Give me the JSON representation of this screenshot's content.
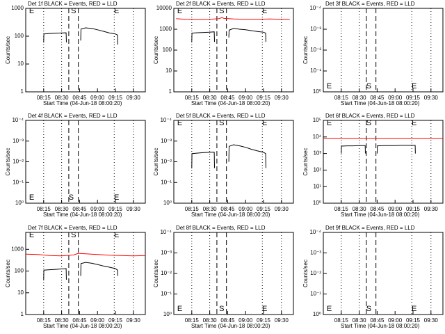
{
  "chart_data": [
    {
      "type": "line",
      "title": "Det 1f BLACK = Events, RED = LLD",
      "xlabel": "Start Time (04-Jun-18 08:00:20)",
      "ylabel": "Counts/sec",
      "ylog": true,
      "xlim": [
        0,
        100
      ],
      "xticks": [
        {
          "value": 15,
          "label": "08:15"
        },
        {
          "value": 30,
          "label": "08:30"
        },
        {
          "value": 45,
          "label": "08:45"
        },
        {
          "value": 60,
          "label": "09:00"
        },
        {
          "value": 75,
          "label": "09:15"
        },
        {
          "value": 90,
          "label": "09:30"
        }
      ],
      "ylim": [
        1,
        1000
      ],
      "yticks": [
        1,
        10,
        100,
        1000
      ],
      "dashed": [
        36,
        44
      ],
      "dotted": [
        15,
        30,
        74,
        90
      ],
      "events": [
        {
          "label": "E",
          "x": 5
        },
        {
          "label": "S",
          "x": 40
        },
        {
          "label": "E",
          "x": 76
        }
      ],
      "event_labels": "top",
      "series": [
        {
          "color": "#000000",
          "x": [
            15,
            15.2,
            20,
            25,
            30,
            33.8,
            34,
            40,
            46,
            46.2,
            50,
            55,
            60,
            65,
            70,
            75,
            76.8,
            77
          ],
          "values": [
            60,
            120,
            125,
            128,
            130,
            132,
            60,
            null,
            70,
            180,
            200,
            190,
            170,
            150,
            130,
            120,
            110,
            50
          ]
        }
      ]
    },
    {
      "type": "line",
      "title": "Det 2f BLACK = Events, RED = LLD",
      "xlabel": "Start Time (04-Jun-18 08:00:20)",
      "ylabel": "Counts/sec",
      "ylog": true,
      "xlim": [
        0,
        100
      ],
      "xticks": [
        {
          "value": 15,
          "label": "08:15"
        },
        {
          "value": 30,
          "label": "08:30"
        },
        {
          "value": 45,
          "label": "08:45"
        },
        {
          "value": 60,
          "label": "09:00"
        },
        {
          "value": 75,
          "label": "09:15"
        },
        {
          "value": 90,
          "label": "09:30"
        }
      ],
      "ylim": [
        1,
        10000
      ],
      "yticks": [
        1,
        10,
        100,
        1000,
        10000
      ],
      "dashed": [
        36,
        44
      ],
      "dotted": [
        15,
        30,
        74,
        90
      ],
      "events": [
        {
          "label": "E",
          "x": 5
        },
        {
          "label": "S",
          "x": 40
        },
        {
          "label": "E",
          "x": 76
        }
      ],
      "event_labels": "top",
      "series": [
        {
          "color": "#000000",
          "x": [
            15,
            15.2,
            20,
            25,
            30,
            33.8,
            34,
            40,
            46,
            46.2,
            50,
            55,
            60,
            65,
            70,
            75,
            76.8,
            77
          ],
          "values": [
            250,
            650,
            680,
            700,
            720,
            750,
            250,
            null,
            400,
            900,
            1100,
            1000,
            950,
            850,
            780,
            720,
            650,
            250
          ]
        },
        {
          "color": "#ff0000",
          "x": [
            2,
            10,
            20,
            30,
            38,
            40,
            42,
            50,
            60,
            70,
            80,
            90,
            97
          ],
          "values": [
            3200,
            3000,
            2900,
            3000,
            3200,
            3600,
            3300,
            3100,
            3000,
            3000,
            3100,
            3000,
            3000
          ]
        }
      ]
    },
    {
      "type": "line",
      "title": "Det 3f BLACK = Events, RED = LLD",
      "xlabel": "Start Time (04-Jun-18 08:00:20)",
      "ylabel": "Counts/sec",
      "ylog": true,
      "xlim": [
        0,
        100
      ],
      "xticks": [
        {
          "value": 15,
          "label": "08:15"
        },
        {
          "value": 30,
          "label": "08:30"
        },
        {
          "value": 45,
          "label": "08:45"
        },
        {
          "value": 60,
          "label": "09:00"
        },
        {
          "value": 75,
          "label": "09:15"
        },
        {
          "value": 90,
          "label": "09:30"
        }
      ],
      "ylim": [
        1,
        0.0001
      ],
      "yticks": [
        {
          "value": 1,
          "label": "10⁰"
        },
        {
          "value": 0.1,
          "label": "10⁻¹"
        },
        {
          "value": 0.01,
          "label": "10⁻²"
        },
        {
          "value": 0.001,
          "label": "10⁻³"
        },
        {
          "value": 0.0001,
          "label": "10⁻⁴"
        }
      ],
      "dashed": [
        36,
        44
      ],
      "dotted": [
        15,
        30,
        74,
        90
      ],
      "events": [
        {
          "label": "E",
          "x": 5
        },
        {
          "label": "S",
          "x": 38
        },
        {
          "label": "E",
          "x": 76
        }
      ],
      "event_labels": "bottom",
      "series": []
    },
    {
      "type": "line",
      "title": "Det 4f BLACK = Events, RED = LLD",
      "xlabel": "Start Time (04-Jun-18 08:00:20)",
      "ylabel": "Counts/sec",
      "ylog": true,
      "xlim": [
        0,
        100
      ],
      "xticks": [
        {
          "value": 15,
          "label": "08:15"
        },
        {
          "value": 30,
          "label": "08:30"
        },
        {
          "value": 45,
          "label": "08:45"
        },
        {
          "value": 60,
          "label": "09:00"
        },
        {
          "value": 75,
          "label": "09:15"
        },
        {
          "value": 90,
          "label": "09:30"
        }
      ],
      "ylim": [
        1,
        0.0001
      ],
      "yticks": [
        {
          "value": 1,
          "label": "10⁰"
        },
        {
          "value": 0.1,
          "label": "10⁻¹"
        },
        {
          "value": 0.01,
          "label": "10⁻²"
        },
        {
          "value": 0.001,
          "label": "10⁻³"
        },
        {
          "value": 0.0001,
          "label": "10⁻⁴"
        }
      ],
      "dashed": [
        36,
        44
      ],
      "dotted": [
        15,
        30,
        74,
        90
      ],
      "events": [
        {
          "label": "E",
          "x": 5
        },
        {
          "label": "S",
          "x": 38
        },
        {
          "label": "E",
          "x": 76
        }
      ],
      "event_labels": "bottom",
      "series": []
    },
    {
      "type": "line",
      "title": "Det 5f BLACK = Events, RED = LLD",
      "xlabel": "Start Time (04-Jun-18 08:00:20)",
      "ylabel": "Counts/sec",
      "ylog": true,
      "xlim": [
        0,
        100
      ],
      "xticks": [
        {
          "value": 15,
          "label": "08:15"
        },
        {
          "value": 30,
          "label": "08:30"
        },
        {
          "value": 45,
          "label": "08:45"
        },
        {
          "value": 60,
          "label": "09:00"
        },
        {
          "value": 75,
          "label": "09:15"
        },
        {
          "value": 90,
          "label": "09:30"
        }
      ],
      "ylim": [
        1,
        0.0001
      ],
      "yticks": [
        {
          "value": 1,
          "label": "10⁰"
        },
        {
          "value": 0.1,
          "label": "10⁻¹"
        },
        {
          "value": 0.01,
          "label": "10⁻²"
        },
        {
          "value": 0.001,
          "label": "10⁻³"
        },
        {
          "value": 0.0001,
          "label": "10⁻⁴"
        }
      ],
      "dashed": [
        36,
        44
      ],
      "dotted": [
        15,
        30,
        74,
        90
      ],
      "events": [
        {
          "label": "E",
          "x": 5
        },
        {
          "label": "S",
          "x": 40
        },
        {
          "label": "E",
          "x": 76
        }
      ],
      "event_labels": "top",
      "series": [
        {
          "color": "#000000",
          "x": [
            15,
            15.2,
            20,
            25,
            30,
            33.8,
            34,
            40,
            46,
            46.2,
            50,
            55,
            60,
            65,
            70,
            75,
            76.8,
            77
          ],
          "values": [
            0.02,
            0.004,
            0.0038,
            0.0036,
            0.0035,
            0.0034,
            0.02,
            null,
            0.01,
            0.0018,
            0.0015,
            0.0017,
            0.002,
            0.0025,
            0.003,
            0.0035,
            0.004,
            0.02
          ]
        }
      ]
    },
    {
      "type": "line",
      "title": "Det 6f BLACK = Events, RED = LLD",
      "xlabel": "Start Time (04-Jun-18 08:00:20)",
      "ylabel": "Counts/sec",
      "ylog": true,
      "xlim": [
        0,
        100
      ],
      "xticks": [
        {
          "value": 15,
          "label": "08:15"
        },
        {
          "value": 30,
          "label": "08:30"
        },
        {
          "value": 45,
          "label": "08:45"
        },
        {
          "value": 60,
          "label": "09:00"
        },
        {
          "value": 75,
          "label": "09:15"
        },
        {
          "value": 90,
          "label": "09:30"
        }
      ],
      "ylim": [
        1,
        100000
      ],
      "yticks": [
        {
          "value": 1,
          "label": "10⁰"
        },
        {
          "value": 10,
          "label": "10¹"
        },
        {
          "value": 100,
          "label": "10²"
        },
        {
          "value": 1000,
          "label": "10³"
        },
        {
          "value": 10000,
          "label": "10⁴"
        },
        {
          "value": 100000,
          "label": "10⁵"
        }
      ],
      "dashed": [
        36,
        44
      ],
      "dotted": [
        15,
        30,
        74,
        90
      ],
      "events": [
        {
          "label": "E",
          "x": 5
        },
        {
          "label": "S",
          "x": 38
        },
        {
          "label": "E",
          "x": 76
        }
      ],
      "event_labels": "top",
      "series": [
        {
          "color": "#000000",
          "x": [
            15,
            15.2,
            20,
            25,
            30,
            35,
            35.2,
            40,
            45,
            45.2,
            50,
            55,
            60,
            65,
            70,
            76.8,
            77
          ],
          "values": [
            1000,
            2800,
            2900,
            2900,
            3000,
            3000,
            1000,
            null,
            1000,
            2900,
            3000,
            3000,
            3000,
            3100,
            3100,
            3100,
            1000
          ]
        },
        {
          "color": "#ff0000",
          "x": [
            0,
            100
          ],
          "values": [
            8000,
            8000
          ]
        }
      ]
    },
    {
      "type": "line",
      "title": "Det 7f BLACK = Events, RED = LLD",
      "xlabel": "Start Time (04-Jun-18 08:00:20)",
      "ylabel": "Counts/sec",
      "ylog": true,
      "xlim": [
        0,
        100
      ],
      "xticks": [
        {
          "value": 15,
          "label": "08:15"
        },
        {
          "value": 30,
          "label": "08:30"
        },
        {
          "value": 45,
          "label": "08:45"
        },
        {
          "value": 60,
          "label": "09:00"
        },
        {
          "value": 75,
          "label": "09:15"
        },
        {
          "value": 90,
          "label": "09:30"
        }
      ],
      "ylim": [
        1,
        6000
      ],
      "yticks": [
        1,
        10,
        100,
        1000
      ],
      "dashed": [
        36,
        44
      ],
      "dotted": [
        15,
        30,
        74,
        90
      ],
      "events": [
        {
          "label": "E",
          "x": 5
        },
        {
          "label": "S",
          "x": 40
        },
        {
          "label": "E",
          "x": 76
        }
      ],
      "event_labels": "top",
      "series": [
        {
          "color": "#000000",
          "x": [
            15,
            15.2,
            20,
            25,
            30,
            33.8,
            34,
            40,
            46,
            46.2,
            50,
            55,
            60,
            65,
            70,
            75,
            76.8,
            77
          ],
          "values": [
            40,
            110,
            115,
            120,
            125,
            130,
            40,
            null,
            60,
            220,
            250,
            230,
            200,
            170,
            150,
            130,
            110,
            60
          ]
        },
        {
          "color": "#ff0000",
          "x": [
            0,
            10,
            20,
            30,
            40,
            44,
            50,
            60,
            70,
            80,
            90,
            100
          ],
          "values": [
            600,
            580,
            520,
            500,
            550,
            650,
            620,
            580,
            540,
            520,
            500,
            520
          ]
        }
      ]
    },
    {
      "type": "line",
      "title": "Det 8f BLACK = Events, RED = LLD",
      "xlabel": "Start Time (04-Jun-18 08:00:20)",
      "ylabel": "Counts/sec",
      "ylog": true,
      "xlim": [
        0,
        100
      ],
      "xticks": [
        {
          "value": 15,
          "label": "08:15"
        },
        {
          "value": 30,
          "label": "08:30"
        },
        {
          "value": 45,
          "label": "08:45"
        },
        {
          "value": 60,
          "label": "09:00"
        },
        {
          "value": 75,
          "label": "09:15"
        },
        {
          "value": 90,
          "label": "09:30"
        }
      ],
      "ylim": [
        1,
        0.0001
      ],
      "yticks": [
        {
          "value": 1,
          "label": "10⁰"
        },
        {
          "value": 0.1,
          "label": "10⁻¹"
        },
        {
          "value": 0.01,
          "label": "10⁻²"
        },
        {
          "value": 0.001,
          "label": "10⁻³"
        },
        {
          "value": 0.0001,
          "label": "10⁻⁴"
        }
      ],
      "dashed": [
        36,
        44
      ],
      "dotted": [
        15,
        30,
        74,
        90
      ],
      "events": [
        {
          "label": "E",
          "x": 5
        },
        {
          "label": "S",
          "x": 40
        },
        {
          "label": "E",
          "x": 76
        }
      ],
      "event_labels": "bottom",
      "series": []
    },
    {
      "type": "line",
      "title": "Det 9f BLACK = Events, RED = LLD",
      "xlabel": "Start Time (04-Jun-18 08:00:20)",
      "ylabel": "Counts/sec",
      "ylog": true,
      "xlim": [
        0,
        100
      ],
      "xticks": [
        {
          "value": 15,
          "label": "08:15"
        },
        {
          "value": 30,
          "label": "08:30"
        },
        {
          "value": 45,
          "label": "08:45"
        },
        {
          "value": 60,
          "label": "09:00"
        },
        {
          "value": 75,
          "label": "09:15"
        },
        {
          "value": 90,
          "label": "09:30"
        }
      ],
      "ylim": [
        1,
        0.0001
      ],
      "yticks": [
        {
          "value": 1,
          "label": "10⁰"
        },
        {
          "value": 0.1,
          "label": "10⁻¹"
        },
        {
          "value": 0.01,
          "label": "10⁻²"
        },
        {
          "value": 0.001,
          "label": "10⁻³"
        },
        {
          "value": 0.0001,
          "label": "10⁻⁴"
        }
      ],
      "dashed": [
        36,
        44
      ],
      "dotted": [
        15,
        30,
        74,
        90
      ],
      "events": [
        {
          "label": "E",
          "x": 5
        },
        {
          "label": "S",
          "x": 38
        },
        {
          "label": "E",
          "x": 76
        }
      ],
      "event_labels": "bottom",
      "series": []
    }
  ]
}
